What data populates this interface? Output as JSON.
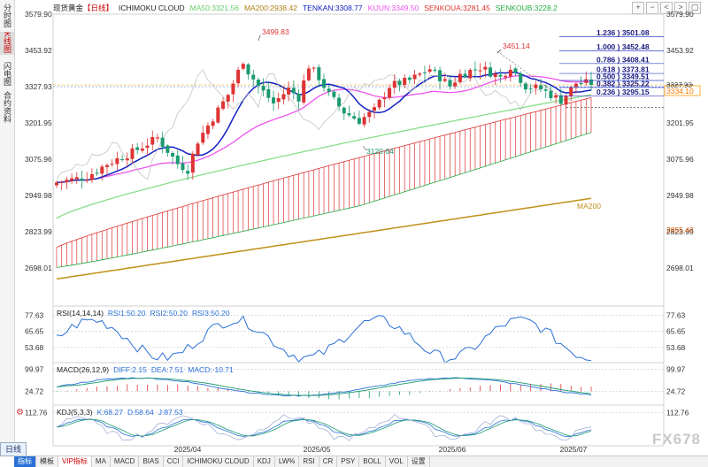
{
  "left_sidebar": {
    "items": [
      {
        "label": "分时图"
      },
      {
        "label": "K线图"
      },
      {
        "label": "闪电图"
      },
      {
        "label": "合约资料"
      }
    ],
    "active_index": 1,
    "timeframe_label": "日线"
  },
  "main_legend": {
    "symbol": "现货黄金",
    "timeframe": "【日线】",
    "indicator": "ICHIMOKU CLOUD",
    "ma50": "MA50:3321.56",
    "ma200": "MA200:2938.42",
    "tenkan": "TENKAN:3308.77",
    "kijun": "KIJUN:3349.50",
    "senkou_a": "SENKOUA:3281.45",
    "senkou_b": "SENKOUB:3228.2"
  },
  "top_tools": [
    "+",
    "−",
    "<",
    ">",
    "▢"
  ],
  "rsi_panel": {
    "name": "RSI(14,14,14)",
    "rsi1": "RSI1:50.20",
    "rsi2": "RSI2:50.20",
    "rsi3": "RSI3:50.20",
    "ticks": [
      "77.63",
      "65.65",
      "53.68"
    ]
  },
  "macd_panel": {
    "name": "MACD(26,12,9)",
    "diff": "DIFF:2.15",
    "dea": "DEA:7.51",
    "macd": "MACD:-10.71",
    "ticks": [
      "99.97",
      "24.72"
    ]
  },
  "kdj_panel": {
    "name": "KDJ(5,3,3)",
    "k": "K:68.27",
    "d": "D:58.64",
    "j": "J:87.53",
    "ticks": [
      "112.76"
    ]
  },
  "bottom_toolbar": [
    "指标",
    "模板",
    "VIP指标",
    "MA",
    "MACD",
    "BIAS",
    "CCI",
    "ICHIMOKU CLOUD",
    "KDJ",
    "LW%",
    "RSI",
    "CR",
    "PSY",
    "BOLL",
    "VOL",
    "设置"
  ],
  "bottom_toolbar_active": 2,
  "watermark": "FX678",
  "chart_data": {
    "type": "candlestick",
    "price_axis_ticks": [
      "3579.90",
      "3453.92",
      "3327.93",
      "3201.95",
      "3075.96",
      "2949.98",
      "2823.99",
      "2698.01"
    ],
    "x_tick_labels": [
      "2025/04",
      "2025/05",
      "2025/06",
      "2025/07"
    ],
    "annotations": {
      "high_1": "3499.83",
      "high_2": "3451.14",
      "low_1": "3120.64",
      "ma200_label": "MA200",
      "current_price": "3334.10",
      "cloud_value": "2855.42",
      "ref_price": "3327.93"
    },
    "fibonacci": [
      {
        "ratio": "1.236",
        "price": "3501.08",
        "value": 3501.08
      },
      {
        "ratio": "1.000",
        "price": "3452.48",
        "value": 3452.48
      },
      {
        "ratio": "0.786",
        "price": "3408.41",
        "value": 3408.41
      },
      {
        "ratio": "0.618",
        "price": "3373.81",
        "value": 3373.81
      },
      {
        "ratio": "0.500",
        "price": "3349.51",
        "value": 3349.51
      },
      {
        "ratio": "0.382",
        "price": "3325.22",
        "value": 3325.22
      },
      {
        "ratio": "0.236",
        "price": "3295.15",
        "value": 3295.15
      }
    ],
    "colors": {
      "up": "#dd3333",
      "down": "#1a9a70",
      "tenkan": "#1020c0",
      "kijun": "#ee55ee",
      "ma50": "#88dd88",
      "ma200": "#c09018",
      "cloud": "#dd3333",
      "fib": "#3344cc",
      "current_price": "#ff9900"
    }
  }
}
